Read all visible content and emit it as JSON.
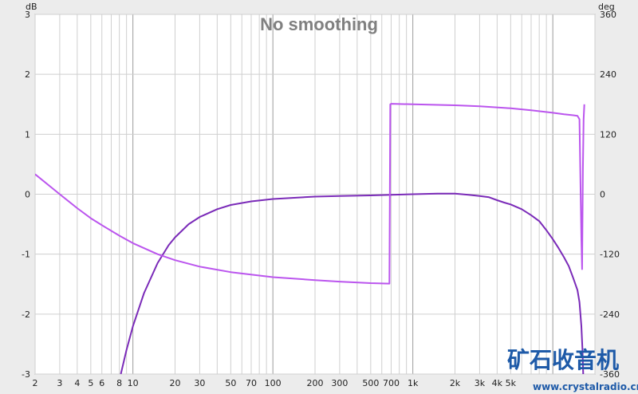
{
  "chart_data": {
    "type": "line",
    "title": "No smoothing",
    "x_scale": "log",
    "xlim": [
      2,
      20000
    ],
    "x_ticks": [
      {
        "v": 2,
        "label": "2"
      },
      {
        "v": 3,
        "label": "3"
      },
      {
        "v": 4,
        "label": "4"
      },
      {
        "v": 5,
        "label": "5"
      },
      {
        "v": 6,
        "label": "6"
      },
      {
        "v": 8,
        "label": "8"
      },
      {
        "v": 10,
        "label": "10"
      },
      {
        "v": 20,
        "label": "20"
      },
      {
        "v": 30,
        "label": "30"
      },
      {
        "v": 50,
        "label": "50"
      },
      {
        "v": 70,
        "label": "70"
      },
      {
        "v": 100,
        "label": "100"
      },
      {
        "v": 200,
        "label": "200"
      },
      {
        "v": 300,
        "label": "300"
      },
      {
        "v": 500,
        "label": "500"
      },
      {
        "v": 700,
        "label": "700"
      },
      {
        "v": 1000,
        "label": "1k"
      },
      {
        "v": 2000,
        "label": "2k"
      },
      {
        "v": 3000,
        "label": "3k"
      },
      {
        "v": 4000,
        "label": "4k"
      },
      {
        "v": 5000,
        "label": "5k"
      }
    ],
    "y_left": {
      "unit": "dB",
      "lim": [
        -3,
        3
      ],
      "ticks": [
        3,
        2,
        1,
        0,
        -1,
        -2,
        -3
      ]
    },
    "y_right": {
      "unit": "deg",
      "lim": [
        -360,
        360
      ],
      "ticks": [
        360,
        240,
        120,
        0,
        -120,
        -240,
        -360
      ]
    },
    "grid": true,
    "series": [
      {
        "axis": "left",
        "color": "#7a2ab8",
        "points": [
          [
            8.2,
            -3.0
          ],
          [
            9,
            -2.6
          ],
          [
            10,
            -2.2
          ],
          [
            12,
            -1.65
          ],
          [
            15,
            -1.15
          ],
          [
            18,
            -0.85
          ],
          [
            20,
            -0.72
          ],
          [
            25,
            -0.5
          ],
          [
            30,
            -0.38
          ],
          [
            40,
            -0.25
          ],
          [
            50,
            -0.18
          ],
          [
            70,
            -0.12
          ],
          [
            100,
            -0.08
          ],
          [
            200,
            -0.04
          ],
          [
            300,
            -0.03
          ],
          [
            500,
            -0.02
          ],
          [
            700,
            -0.01
          ],
          [
            1000,
            0.0
          ],
          [
            1500,
            0.01
          ],
          [
            2000,
            0.01
          ],
          [
            2500,
            -0.01
          ],
          [
            3000,
            -0.03
          ],
          [
            3500,
            -0.05
          ],
          [
            4000,
            -0.1
          ],
          [
            4500,
            -0.14
          ],
          [
            5000,
            -0.17
          ],
          [
            6000,
            -0.25
          ],
          [
            7000,
            -0.35
          ],
          [
            8000,
            -0.45
          ],
          [
            9000,
            -0.6
          ],
          [
            10000,
            -0.75
          ],
          [
            11000,
            -0.9
          ],
          [
            12000,
            -1.05
          ],
          [
            13000,
            -1.2
          ],
          [
            14000,
            -1.4
          ],
          [
            15000,
            -1.6
          ],
          [
            15500,
            -1.8
          ],
          [
            16000,
            -2.2
          ],
          [
            16300,
            -2.6
          ],
          [
            16500,
            -3.0
          ]
        ]
      },
      {
        "axis": "right",
        "color": "#bb55ee",
        "points": [
          [
            2,
            40
          ],
          [
            3,
            0
          ],
          [
            4,
            -28
          ],
          [
            5,
            -48
          ],
          [
            6,
            -62
          ],
          [
            8,
            -83
          ],
          [
            10,
            -98
          ],
          [
            15,
            -120
          ],
          [
            20,
            -132
          ],
          [
            30,
            -145
          ],
          [
            50,
            -156
          ],
          [
            100,
            -166
          ],
          [
            200,
            -172
          ],
          [
            300,
            -175
          ],
          [
            500,
            -178
          ],
          [
            680,
            -179
          ],
          [
            690,
            180
          ],
          [
            700,
            181
          ],
          [
            1000,
            180
          ],
          [
            2000,
            178
          ],
          [
            3000,
            176
          ],
          [
            5000,
            172
          ],
          [
            7000,
            168
          ],
          [
            10000,
            163
          ],
          [
            12000,
            160
          ],
          [
            14000,
            158
          ],
          [
            15000,
            157
          ],
          [
            15500,
            150
          ],
          [
            16000,
            -90
          ],
          [
            16200,
            -150
          ],
          [
            16400,
            50
          ],
          [
            16600,
            150
          ],
          [
            16800,
            180
          ]
        ]
      }
    ]
  },
  "watermark": {
    "brand": "矿石收音机",
    "url": "www.crystalradio.cn"
  }
}
